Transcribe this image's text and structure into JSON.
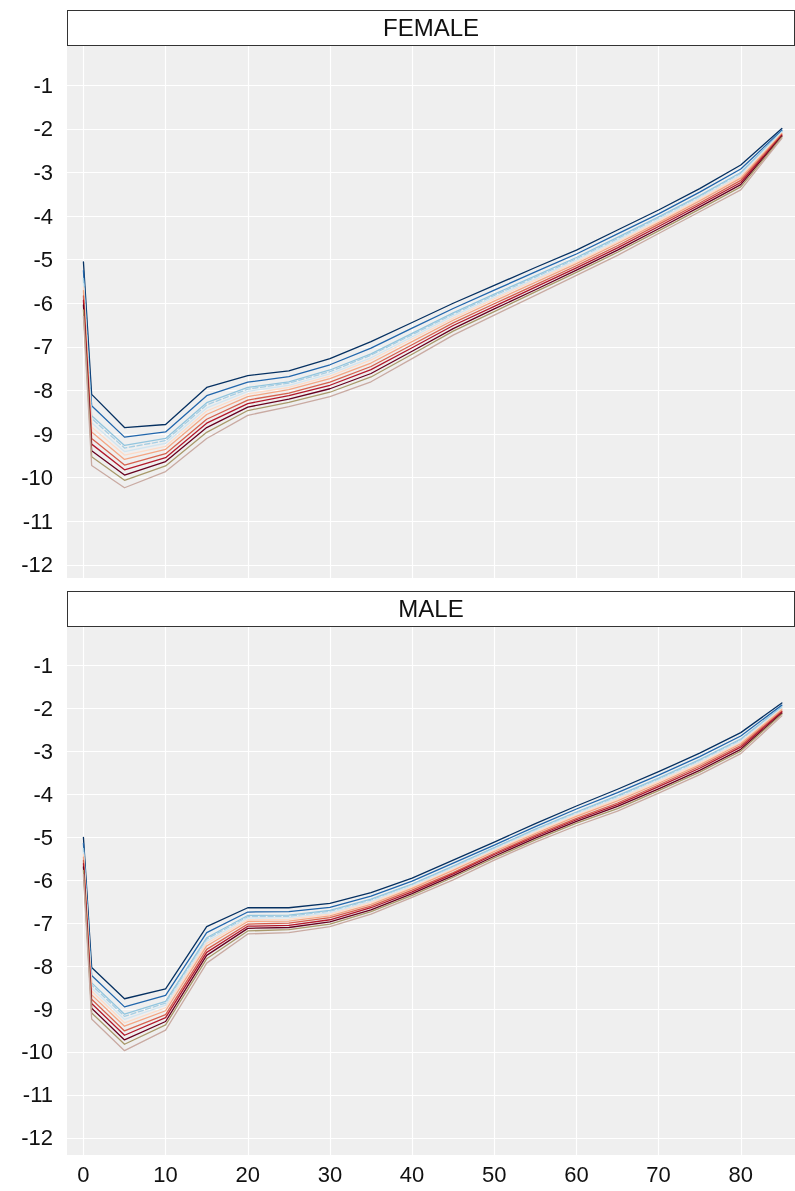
{
  "chart_data": [
    {
      "type": "line",
      "title": "FEMALE",
      "x": [
        0,
        1,
        5,
        10,
        15,
        20,
        25,
        30,
        35,
        40,
        45,
        50,
        55,
        60,
        65,
        70,
        75,
        80,
        85
      ],
      "xlim": [
        -2,
        86.6
      ],
      "xticks": [
        0,
        10,
        20,
        30,
        40,
        50,
        60,
        70,
        80
      ],
      "ylim": [
        -12.3,
        -0.1
      ],
      "yticks": [
        -12,
        -11,
        -10,
        -9,
        -8,
        -7,
        -6,
        -5,
        -4,
        -3,
        -2,
        -1
      ],
      "grid": true,
      "legend": false,
      "marker": "none",
      "tick_labels": "y",
      "series": [
        {
          "color": "#053061",
          "values": [
            -5.05,
            -8.09,
            -8.85,
            -8.78,
            -7.93,
            -7.66,
            -7.55,
            -7.27,
            -6.88,
            -6.44,
            -6.0,
            -5.59,
            -5.18,
            -4.78,
            -4.32,
            -3.86,
            -3.37,
            -2.83,
            -1.99
          ]
        },
        {
          "color": "#2166ac",
          "values": [
            -5.25,
            -8.35,
            -9.07,
            -8.95,
            -8.12,
            -7.81,
            -7.68,
            -7.41,
            -7.03,
            -6.57,
            -6.12,
            -5.7,
            -5.28,
            -4.87,
            -4.41,
            -3.95,
            -3.45,
            -2.92,
            -2.03
          ]
        },
        {
          "color": "#92c5de",
          "values": [
            -5.43,
            -8.58,
            -9.26,
            -9.1,
            -8.28,
            -7.93,
            -7.8,
            -7.53,
            -7.16,
            -6.69,
            -6.22,
            -5.79,
            -5.37,
            -4.95,
            -4.49,
            -4.02,
            -3.53,
            -3.0,
            -2.06
          ]
        },
        {
          "color": "#a6cee3",
          "line_style": "dashed",
          "values": [
            -5.48,
            -8.64,
            -9.32,
            -9.15,
            -8.33,
            -7.97,
            -7.83,
            -7.57,
            -7.19,
            -6.72,
            -6.25,
            -5.82,
            -5.4,
            -4.98,
            -4.52,
            -4.04,
            -3.55,
            -3.02,
            -2.07
          ]
        },
        {
          "color": "#d1e5f0",
          "values": [
            -5.55,
            -8.74,
            -9.4,
            -9.21,
            -8.4,
            -8.02,
            -7.88,
            -7.62,
            -7.25,
            -6.77,
            -6.29,
            -5.86,
            -5.44,
            -5.01,
            -4.55,
            -4.08,
            -3.58,
            -3.06,
            -2.08
          ]
        },
        {
          "color": "#fddbc7",
          "values": [
            -5.63,
            -8.84,
            -9.48,
            -9.28,
            -8.47,
            -8.08,
            -7.93,
            -7.67,
            -7.3,
            -6.82,
            -6.34,
            -5.9,
            -5.47,
            -5.05,
            -4.59,
            -4.11,
            -3.61,
            -3.09,
            -2.1
          ]
        },
        {
          "color": "#f4a582",
          "values": [
            -5.71,
            -8.95,
            -9.58,
            -9.35,
            -8.55,
            -8.14,
            -7.98,
            -7.73,
            -7.37,
            -6.88,
            -6.39,
            -5.95,
            -5.52,
            -5.09,
            -4.63,
            -4.15,
            -3.65,
            -3.13,
            -2.11
          ]
        },
        {
          "color": "#d6604d",
          "values": [
            -5.83,
            -9.1,
            -9.71,
            -9.45,
            -8.66,
            -8.22,
            -8.06,
            -7.81,
            -7.45,
            -6.95,
            -6.45,
            -6.01,
            -5.58,
            -5.14,
            -4.68,
            -4.19,
            -3.7,
            -3.18,
            -2.13
          ]
        },
        {
          "color": "#b2182b",
          "values": [
            -5.93,
            -9.23,
            -9.82,
            -9.54,
            -8.75,
            -8.3,
            -8.12,
            -7.88,
            -7.52,
            -7.02,
            -6.51,
            -6.07,
            -5.63,
            -5.19,
            -4.73,
            -4.24,
            -3.74,
            -3.23,
            -2.15
          ]
        },
        {
          "color": "#67001f",
          "values": [
            -6.04,
            -9.38,
            -9.94,
            -9.63,
            -8.85,
            -8.38,
            -8.2,
            -7.96,
            -7.61,
            -7.1,
            -6.58,
            -6.13,
            -5.69,
            -5.24,
            -4.78,
            -4.29,
            -3.79,
            -3.28,
            -2.17
          ]
        },
        {
          "color": "#a8996a",
          "values": [
            -6.15,
            -9.52,
            -10.06,
            -9.73,
            -8.96,
            -8.46,
            -8.27,
            -8.04,
            -7.69,
            -7.17,
            -6.64,
            -6.19,
            -5.74,
            -5.29,
            -4.83,
            -4.34,
            -3.84,
            -3.33,
            -2.19
          ]
        },
        {
          "color": "#c9aaa2",
          "values": [
            -6.3,
            -9.72,
            -10.23,
            -9.86,
            -9.1,
            -8.57,
            -8.37,
            -8.14,
            -7.8,
            -7.27,
            -6.73,
            -6.27,
            -5.82,
            -5.36,
            -4.9,
            -4.4,
            -3.9,
            -3.4,
            -2.22
          ]
        }
      ]
    },
    {
      "type": "line",
      "title": "MALE",
      "x": [
        0,
        1,
        5,
        10,
        15,
        20,
        25,
        30,
        35,
        40,
        45,
        50,
        55,
        60,
        65,
        70,
        75,
        80,
        85
      ],
      "xlim": [
        -2,
        86.6
      ],
      "xticks": [
        0,
        10,
        20,
        30,
        40,
        50,
        60,
        70,
        80
      ],
      "ylim": [
        -12.4,
        -0.1
      ],
      "yticks": [
        -12,
        -11,
        -10,
        -9,
        -8,
        -7,
        -6,
        -5,
        -4,
        -3,
        -2,
        -1
      ],
      "grid": true,
      "legend": false,
      "marker": "none",
      "series": [
        {
          "color": "#053061",
          "values": [
            -5.0,
            -8.03,
            -8.76,
            -8.53,
            -7.08,
            -6.64,
            -6.64,
            -6.54,
            -6.29,
            -5.95,
            -5.53,
            -5.11,
            -4.68,
            -4.27,
            -3.88,
            -3.47,
            -3.04,
            -2.56,
            -1.87
          ]
        },
        {
          "color": "#2166ac",
          "values": [
            -5.14,
            -8.22,
            -8.95,
            -8.68,
            -7.22,
            -6.74,
            -6.73,
            -6.63,
            -6.37,
            -6.02,
            -5.6,
            -5.18,
            -4.75,
            -4.34,
            -3.96,
            -3.55,
            -3.12,
            -2.64,
            -1.92
          ]
        },
        {
          "color": "#92c5de",
          "values": [
            -5.26,
            -8.39,
            -9.12,
            -8.82,
            -7.34,
            -6.82,
            -6.81,
            -6.7,
            -6.44,
            -6.09,
            -5.67,
            -5.24,
            -4.81,
            -4.41,
            -4.03,
            -3.62,
            -3.19,
            -2.71,
            -1.96
          ]
        },
        {
          "color": "#a6cee3",
          "line_style": "dashed",
          "values": [
            -5.3,
            -8.44,
            -9.17,
            -8.86,
            -7.37,
            -6.85,
            -6.84,
            -6.72,
            -6.46,
            -6.1,
            -5.69,
            -5.25,
            -4.83,
            -4.43,
            -4.05,
            -3.64,
            -3.21,
            -2.73,
            -1.97
          ]
        },
        {
          "color": "#d1e5f0",
          "values": [
            -5.35,
            -8.51,
            -9.24,
            -8.91,
            -7.42,
            -6.88,
            -6.87,
            -6.76,
            -6.49,
            -6.13,
            -5.71,
            -5.28,
            -4.85,
            -4.45,
            -4.08,
            -3.67,
            -3.24,
            -2.76,
            -1.99
          ]
        },
        {
          "color": "#fddbc7",
          "values": [
            -5.4,
            -8.58,
            -9.32,
            -8.97,
            -7.47,
            -6.92,
            -6.91,
            -6.79,
            -6.52,
            -6.16,
            -5.74,
            -5.3,
            -4.88,
            -4.48,
            -4.11,
            -3.7,
            -3.27,
            -2.79,
            -2.01
          ]
        },
        {
          "color": "#f4a582",
          "values": [
            -5.46,
            -8.67,
            -9.4,
            -9.04,
            -7.53,
            -6.96,
            -6.95,
            -6.83,
            -6.56,
            -6.19,
            -5.77,
            -5.33,
            -4.91,
            -4.51,
            -4.15,
            -3.74,
            -3.31,
            -2.82,
            -2.03
          ]
        },
        {
          "color": "#d6604d",
          "values": [
            -5.54,
            -8.77,
            -9.51,
            -9.13,
            -7.61,
            -7.02,
            -7.0,
            -6.87,
            -6.6,
            -6.23,
            -5.82,
            -5.37,
            -4.95,
            -4.56,
            -4.2,
            -3.78,
            -3.35,
            -2.86,
            -2.06
          ]
        },
        {
          "color": "#b2182b",
          "values": [
            -5.61,
            -8.87,
            -9.61,
            -9.2,
            -7.68,
            -7.07,
            -7.05,
            -6.92,
            -6.64,
            -6.27,
            -5.85,
            -5.4,
            -4.98,
            -4.59,
            -4.24,
            -3.82,
            -3.39,
            -2.9,
            -2.08
          ]
        },
        {
          "color": "#67001f",
          "values": [
            -5.69,
            -8.98,
            -9.72,
            -9.29,
            -7.75,
            -7.12,
            -7.1,
            -6.97,
            -6.69,
            -6.31,
            -5.89,
            -5.44,
            -5.02,
            -4.63,
            -4.28,
            -3.87,
            -3.44,
            -2.95,
            -2.11
          ]
        },
        {
          "color": "#a8996a",
          "values": [
            -5.77,
            -9.09,
            -9.82,
            -9.37,
            -7.83,
            -7.18,
            -7.15,
            -7.02,
            -6.73,
            -6.35,
            -5.93,
            -5.48,
            -5.06,
            -4.67,
            -4.33,
            -3.91,
            -3.48,
            -2.99,
            -2.13
          ]
        },
        {
          "color": "#c9aaa2",
          "values": [
            -5.87,
            -9.23,
            -9.97,
            -9.49,
            -7.93,
            -7.25,
            -7.22,
            -7.08,
            -6.79,
            -6.4,
            -5.99,
            -5.53,
            -5.11,
            -4.73,
            -4.39,
            -3.97,
            -3.54,
            -3.05,
            -2.17
          ]
        }
      ]
    }
  ]
}
